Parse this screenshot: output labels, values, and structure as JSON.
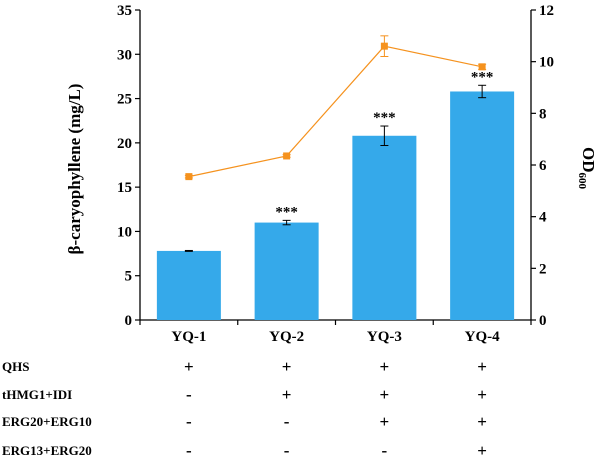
{
  "chart_data": {
    "type": "bar",
    "categories": [
      "YQ-1",
      "YQ-2",
      "YQ-3",
      "YQ-4"
    ],
    "ylabel": "β-caryophyllene (mg/L)",
    "ylabel2_main": "OD",
    "ylabel2_sub": "600",
    "ylim": [
      0,
      35
    ],
    "yticks": [
      0,
      5,
      10,
      15,
      20,
      25,
      30,
      35
    ],
    "y2lim": [
      0,
      12
    ],
    "y2ticks": [
      0,
      2,
      4,
      6,
      8,
      10,
      12
    ],
    "series": [
      {
        "kind": "bar",
        "axis": "left",
        "color": "#35a9ea",
        "values": [
          7.8,
          11.0,
          20.8,
          25.8
        ],
        "errors": [
          0.05,
          0.25,
          1.1,
          0.7
        ],
        "significance": [
          "",
          "***",
          "***",
          "***"
        ]
      },
      {
        "kind": "line",
        "axis": "right",
        "color": "#f5921e",
        "values": [
          5.55,
          6.35,
          10.6,
          9.8
        ],
        "errors": [
          0.05,
          0.05,
          0.4,
          0.1
        ]
      }
    ],
    "grid": false,
    "legend": "none"
  },
  "conditions": [
    {
      "label": "QHS",
      "marks": [
        "+",
        "+",
        "+",
        "+"
      ]
    },
    {
      "label": "tHMG1+IDI",
      "marks": [
        "-",
        "+",
        "+",
        "+"
      ]
    },
    {
      "label": "ERG20+ERG10",
      "marks": [
        "-",
        "-",
        "+",
        "+"
      ]
    },
    {
      "label": "ERG13+ERG20",
      "marks": [
        "-",
        "-",
        "-",
        "+"
      ]
    }
  ]
}
